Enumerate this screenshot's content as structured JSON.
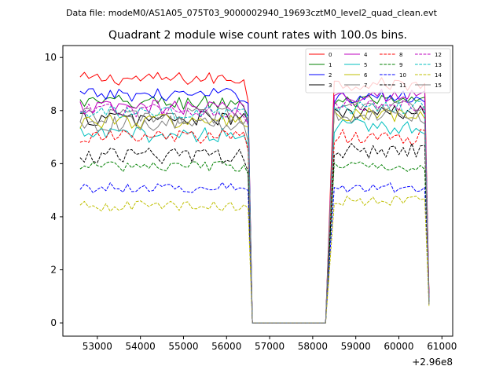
{
  "chart_data": {
    "type": "line",
    "suptitle": "Data file: modeM0/AS1A05_075T03_9000002940_19693cztM0_level2_quad_clean.evt",
    "title": "Quadrant 2 module wise count rates with 100.0s bins.",
    "xlabel": "",
    "ylabel": "",
    "x_offset_label": "+2.96e8",
    "xlim": [
      52200,
      61250
    ],
    "ylim": [
      -0.5,
      10.45
    ],
    "x_ticks": [
      53000,
      54000,
      55000,
      56000,
      57000,
      58000,
      59000,
      60000,
      61000
    ],
    "x_tick_labels": [
      "53000",
      "54000",
      "55000",
      "56000",
      "57000",
      "58000",
      "59000",
      "60000",
      "61000"
    ],
    "y_ticks": [
      0,
      2,
      4,
      6,
      8,
      10
    ],
    "y_tick_labels": [
      "0",
      "2",
      "4",
      "6",
      "8",
      "10"
    ],
    "grid": false,
    "legend_position": "top-right",
    "legend_columns": 4,
    "time": {
      "seg1_start": 52600,
      "seg1_end": 56400,
      "drop_to_zero": 56600,
      "zero_end": 58300,
      "seg2_start": 58500,
      "seg2_end": 60600,
      "last": 60700,
      "step": 100
    },
    "series": [
      {
        "name": "0",
        "color": "#ff0000",
        "dash": "solid",
        "mean1": 9.2,
        "mean2": 9.0,
        "amp": 0.25,
        "last": 1.0
      },
      {
        "name": "1",
        "color": "#008000",
        "dash": "solid",
        "mean1": 8.3,
        "mean2": 8.3,
        "amp": 0.3,
        "last": 0.9
      },
      {
        "name": "2",
        "color": "#0000ff",
        "dash": "solid",
        "mean1": 8.6,
        "mean2": 8.5,
        "amp": 0.25,
        "last": 0.8
      },
      {
        "name": "3",
        "color": "#000000",
        "dash": "solid",
        "mean1": 7.7,
        "mean2": 7.9,
        "amp": 0.3,
        "last": 0.9
      },
      {
        "name": "4",
        "color": "#bf00bf",
        "dash": "solid",
        "mean1": 8.1,
        "mean2": 8.6,
        "amp": 0.3,
        "last": 1.0
      },
      {
        "name": "5",
        "color": "#00bfbf",
        "dash": "solid",
        "mean1": 7.1,
        "mean2": 7.4,
        "amp": 0.3,
        "last": 0.8
      },
      {
        "name": "6",
        "color": "#bfbf00",
        "dash": "solid",
        "mean1": 7.6,
        "mean2": 7.8,
        "amp": 0.3,
        "last": 0.7
      },
      {
        "name": "7",
        "color": "#808080",
        "dash": "solid",
        "mean1": 7.8,
        "mean2": 8.1,
        "amp": 0.3,
        "last": 0.8
      },
      {
        "name": "8",
        "color": "#ff0000",
        "dash": "dashed",
        "mean1": 7.0,
        "mean2": 7.0,
        "amp": 0.3,
        "last": 0.9
      },
      {
        "name": "9",
        "color": "#008000",
        "dash": "dashed",
        "mean1": 5.9,
        "mean2": 5.9,
        "amp": 0.2,
        "last": 0.8
      },
      {
        "name": "10",
        "color": "#0000ff",
        "dash": "dashed",
        "mean1": 5.1,
        "mean2": 5.1,
        "amp": 0.2,
        "last": 0.7
      },
      {
        "name": "11",
        "color": "#000000",
        "dash": "dashed",
        "mean1": 6.3,
        "mean2": 6.5,
        "amp": 0.3,
        "last": 0.8
      },
      {
        "name": "12",
        "color": "#bf00bf",
        "dash": "dashed",
        "mean1": 8.0,
        "mean2": 8.2,
        "amp": 0.25,
        "last": 0.9
      },
      {
        "name": "13",
        "color": "#00bfbf",
        "dash": "dashed",
        "mean1": 7.9,
        "mean2": 8.1,
        "amp": 0.25,
        "last": 0.8
      },
      {
        "name": "14",
        "color": "#bfbf00",
        "dash": "dashed",
        "mean1": 4.4,
        "mean2": 4.6,
        "amp": 0.2,
        "last": 0.6
      },
      {
        "name": "15",
        "color": "#808080",
        "dash": "solid",
        "mean1": 7.5,
        "mean2": 7.8,
        "amp": 0.3,
        "last": 0.7
      }
    ]
  }
}
